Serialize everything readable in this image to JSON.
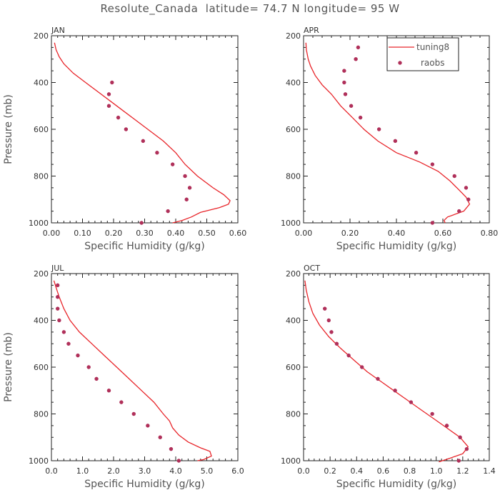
{
  "figure": {
    "title": "Resolute_Canada  latitude= 74.7 N longitude= 95 W"
  },
  "legend": {
    "model": "tuning8",
    "obs": "raobs"
  },
  "colors": {
    "model": "#e8262b",
    "obs": "#b0305a"
  },
  "chart_data": [
    {
      "type": "line",
      "panel": "JAN",
      "xlabel": "Specific Humidity (g/kg)",
      "ylabel": "Pressure (mb)",
      "xlim": [
        0,
        0.6
      ],
      "xticks": [
        0.0,
        0.1,
        0.2,
        0.3,
        0.4,
        0.5,
        0.6
      ],
      "xtick_labels": [
        "0.00",
        "0.10",
        "0.20",
        "0.30",
        "0.40",
        "0.50",
        "0.60"
      ],
      "ylim": [
        1000,
        200
      ],
      "yticks": [
        200,
        400,
        600,
        800,
        1000
      ],
      "ytick_labels": [
        "200",
        "400",
        "600",
        "800",
        "1000"
      ],
      "series": [
        {
          "name": "tuning8",
          "kind": "line",
          "x": [
            0.01,
            0.015,
            0.025,
            0.04,
            0.07,
            0.11,
            0.15,
            0.19,
            0.23,
            0.27,
            0.31,
            0.36,
            0.4,
            0.43,
            0.47,
            0.52,
            0.555,
            0.575,
            0.57,
            0.54,
            0.48,
            0.45,
            0.42,
            0.39
          ],
          "y": [
            230,
            260,
            290,
            320,
            360,
            400,
            440,
            480,
            520,
            560,
            600,
            650,
            700,
            750,
            800,
            850,
            880,
            905,
            920,
            935,
            955,
            975,
            990,
            1000
          ]
        },
        {
          "name": "raobs",
          "kind": "scatter",
          "x": [
            0.195,
            0.185,
            0.185,
            0.215,
            0.24,
            0.295,
            0.34,
            0.39,
            0.43,
            0.445,
            0.435,
            0.375,
            0.29
          ],
          "y": [
            400,
            450,
            500,
            550,
            600,
            650,
            700,
            750,
            800,
            850,
            900,
            950,
            1000
          ]
        }
      ]
    },
    {
      "type": "line",
      "panel": "APR",
      "xlabel": "Specific Humidity (g/kg)",
      "ylabel": "",
      "xlim": [
        0,
        0.8
      ],
      "xticks": [
        0.0,
        0.2,
        0.4,
        0.6,
        0.8
      ],
      "xtick_labels": [
        "0.00",
        "0.20",
        "0.40",
        "0.60",
        "0.80"
      ],
      "ylim": [
        1000,
        200
      ],
      "yticks": [
        200,
        400,
        600,
        800,
        1000
      ],
      "ytick_labels": [
        "200",
        "400",
        "600",
        "800",
        "1000"
      ],
      "series": [
        {
          "name": "tuning8",
          "kind": "line",
          "x": [
            0.01,
            0.012,
            0.02,
            0.03,
            0.05,
            0.08,
            0.12,
            0.16,
            0.21,
            0.26,
            0.32,
            0.4,
            0.5,
            0.58,
            0.63,
            0.67,
            0.7,
            0.715,
            0.69,
            0.62,
            0.605,
            0.61
          ],
          "y": [
            230,
            260,
            300,
            330,
            370,
            410,
            450,
            500,
            550,
            600,
            650,
            700,
            740,
            780,
            820,
            860,
            890,
            920,
            950,
            975,
            990,
            1000
          ]
        },
        {
          "name": "raobs",
          "kind": "scatter",
          "x": [
            0.235,
            0.225,
            0.175,
            0.175,
            0.18,
            0.205,
            0.245,
            0.325,
            0.395,
            0.485,
            0.555,
            0.65,
            0.7,
            0.71,
            0.67,
            0.555
          ],
          "y": [
            250,
            300,
            350,
            400,
            450,
            500,
            550,
            600,
            650,
            700,
            750,
            800,
            850,
            900,
            950,
            1000
          ]
        }
      ]
    },
    {
      "type": "line",
      "panel": "JUL",
      "xlabel": "Specific Humidity (g/kg)",
      "ylabel": "Pressure (mb)",
      "xlim": [
        0,
        6
      ],
      "xticks": [
        0,
        1,
        2,
        3,
        4,
        5,
        6
      ],
      "xtick_labels": [
        "0.0",
        "1.0",
        "2.0",
        "3.0",
        "4.0",
        "5.0",
        "6.0"
      ],
      "ylim": [
        1000,
        200
      ],
      "yticks": [
        200,
        400,
        600,
        800,
        1000
      ],
      "ytick_labels": [
        "200",
        "400",
        "600",
        "800",
        "1000"
      ],
      "series": [
        {
          "name": "tuning8",
          "kind": "line",
          "x": [
            0.08,
            0.15,
            0.25,
            0.4,
            0.6,
            0.9,
            1.3,
            1.7,
            2.1,
            2.5,
            2.9,
            3.3,
            3.6,
            3.8,
            3.9,
            4.1,
            4.4,
            4.8,
            5.1,
            5.15,
            4.9,
            4.7
          ],
          "y": [
            230,
            260,
            300,
            350,
            400,
            450,
            500,
            550,
            600,
            650,
            700,
            750,
            800,
            830,
            860,
            890,
            920,
            945,
            960,
            980,
            995,
            1000
          ]
        },
        {
          "name": "raobs",
          "kind": "scatter",
          "x": [
            0.2,
            0.2,
            0.2,
            0.25,
            0.4,
            0.55,
            0.85,
            1.2,
            1.45,
            1.85,
            2.25,
            2.65,
            3.1,
            3.5,
            3.85,
            4.1
          ],
          "y": [
            250,
            300,
            350,
            400,
            450,
            500,
            550,
            600,
            650,
            700,
            750,
            800,
            850,
            900,
            950,
            1000
          ]
        }
      ]
    },
    {
      "type": "line",
      "panel": "OCT",
      "xlabel": "Specific Humidity (g/kg)",
      "ylabel": "",
      "xlim": [
        0,
        1.4
      ],
      "xticks": [
        0,
        0.2,
        0.4,
        0.6,
        0.8,
        1.0,
        1.2,
        1.4
      ],
      "xtick_labels": [
        "0.0",
        "0.2",
        "0.4",
        "0.6",
        "0.8",
        "1.0",
        "1.2",
        "1.4"
      ],
      "ylim": [
        1000,
        200
      ],
      "yticks": [
        200,
        400,
        600,
        800,
        1000
      ],
      "ytick_labels": [
        "200",
        "400",
        "600",
        "800",
        "1000"
      ],
      "series": [
        {
          "name": "tuning8",
          "kind": "line",
          "x": [
            0.01,
            0.02,
            0.04,
            0.07,
            0.12,
            0.19,
            0.28,
            0.38,
            0.48,
            0.58,
            0.68,
            0.78,
            0.88,
            0.98,
            1.08,
            1.18,
            1.24,
            1.2,
            1.1,
            1.02
          ],
          "y": [
            230,
            270,
            320,
            370,
            420,
            470,
            520,
            570,
            620,
            660,
            700,
            740,
            780,
            820,
            860,
            900,
            940,
            970,
            990,
            1005
          ]
        },
        {
          "name": "raobs",
          "kind": "scatter",
          "x": [
            0.16,
            0.19,
            0.21,
            0.25,
            0.34,
            0.44,
            0.56,
            0.69,
            0.81,
            0.97,
            1.08,
            1.18,
            1.23,
            1.17
          ],
          "y": [
            350,
            400,
            450,
            500,
            550,
            600,
            650,
            700,
            750,
            800,
            850,
            900,
            950,
            1000
          ]
        }
      ]
    }
  ]
}
